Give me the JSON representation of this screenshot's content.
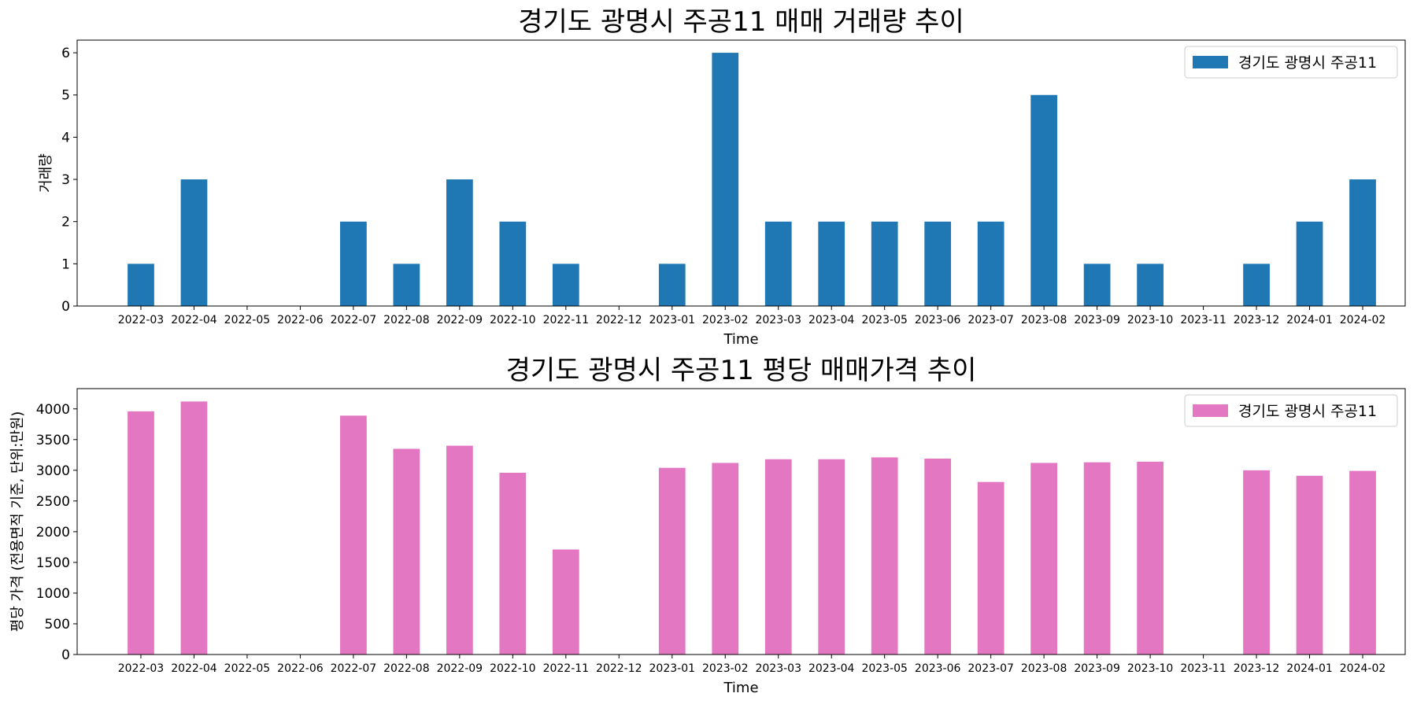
{
  "chart_data": [
    {
      "type": "bar",
      "title": "경기도 광명시 주공11 매매 거래량 추이",
      "xlabel": "Time",
      "ylabel": "거래량",
      "categories": [
        "2022-03",
        "2022-04",
        "2022-05",
        "2022-06",
        "2022-07",
        "2022-08",
        "2022-09",
        "2022-10",
        "2022-11",
        "2022-12",
        "2023-01",
        "2023-02",
        "2023-03",
        "2023-04",
        "2023-05",
        "2023-06",
        "2023-07",
        "2023-08",
        "2023-09",
        "2023-10",
        "2023-11",
        "2023-12",
        "2024-01",
        "2024-02"
      ],
      "series": [
        {
          "name": "경기도 광명시 주공11",
          "color": "#1f77b4",
          "values": [
            1,
            3,
            0,
            0,
            2,
            1,
            3,
            2,
            1,
            0,
            1,
            6,
            2,
            2,
            2,
            2,
            2,
            5,
            1,
            1,
            0,
            1,
            2,
            3
          ]
        }
      ],
      "yticks": [
        0,
        1,
        2,
        3,
        4,
        5,
        6
      ],
      "ylim": [
        0,
        6.3
      ],
      "legend": "top-right",
      "grid": false
    },
    {
      "type": "bar",
      "title": "경기도 광명시 주공11 평당 매매가격 추이",
      "xlabel": "Time",
      "ylabel": "평당 가격 (전용면적 기준, 단위:만원)",
      "categories": [
        "2022-03",
        "2022-04",
        "2022-05",
        "2022-06",
        "2022-07",
        "2022-08",
        "2022-09",
        "2022-10",
        "2022-11",
        "2022-12",
        "2023-01",
        "2023-02",
        "2023-03",
        "2023-04",
        "2023-05",
        "2023-06",
        "2023-07",
        "2023-08",
        "2023-09",
        "2023-10",
        "2023-11",
        "2023-12",
        "2024-01",
        "2024-02"
      ],
      "series": [
        {
          "name": "경기도 광명시 주공11",
          "color": "#e377c2",
          "values": [
            3960,
            4120,
            0,
            0,
            3890,
            3350,
            3400,
            2960,
            1710,
            0,
            3040,
            3120,
            3180,
            3180,
            3210,
            3190,
            2810,
            3120,
            3130,
            3140,
            0,
            3000,
            2910,
            2990
          ]
        }
      ],
      "yticks": [
        0,
        500,
        1000,
        1500,
        2000,
        2500,
        3000,
        3500,
        4000
      ],
      "ylim": [
        0,
        4330
      ],
      "legend": "top-right",
      "grid": false
    }
  ]
}
